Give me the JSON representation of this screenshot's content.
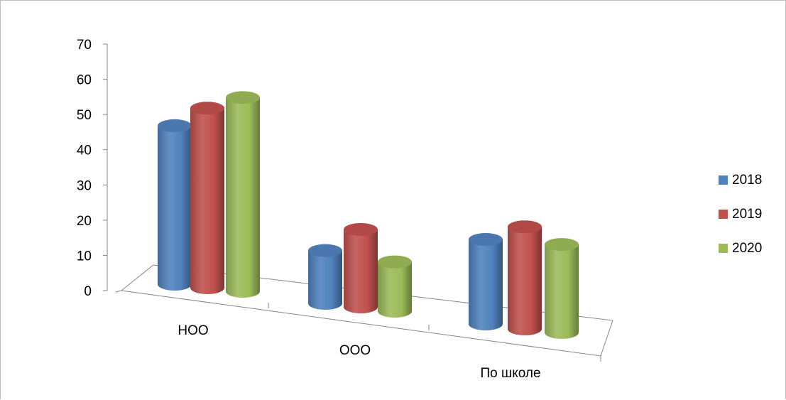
{
  "chart_data": {
    "type": "bar",
    "variant": "3d-cylinder",
    "categories": [
      "НОО",
      "ООО",
      "По школе"
    ],
    "series": [
      {
        "name": "2018",
        "values": [
          45,
          15,
          24
        ],
        "color": "#4F81BD"
      },
      {
        "name": "2019",
        "values": [
          51,
          22,
          29
        ],
        "color": "#C0504D"
      },
      {
        "name": "2020",
        "values": [
          55,
          14,
          25
        ],
        "color": "#9BBB59"
      }
    ],
    "yticks": [
      "0",
      "10",
      "20",
      "30",
      "40",
      "50",
      "60",
      "70"
    ],
    "ylim": [
      0,
      70
    ],
    "title": "",
    "xlabel": "",
    "ylabel": "",
    "grid": false,
    "legend_position": "right"
  }
}
